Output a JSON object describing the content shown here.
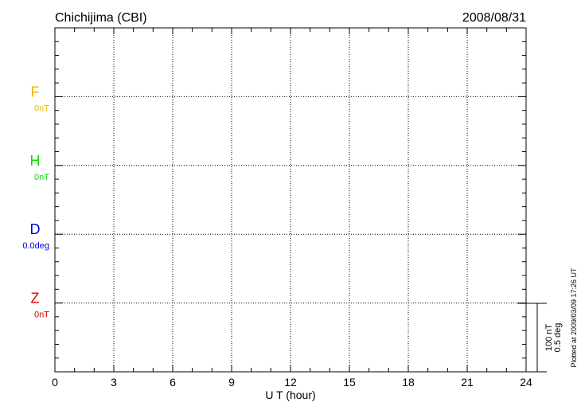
{
  "chart_data": {
    "type": "line",
    "title": "Chichijima (CBI)",
    "date": "2008/08/31",
    "xlabel": "U T (hour)",
    "xlim": [
      0,
      24
    ],
    "xticks": [
      "0",
      "3",
      "6",
      "9",
      "12",
      "15",
      "18",
      "21",
      "24"
    ],
    "grid": true,
    "series": [
      {
        "name": "F",
        "baseline_label": "0nT",
        "color": "#f0b400",
        "values": []
      },
      {
        "name": "H",
        "baseline_label": "0nT",
        "color": "#00e000",
        "values": []
      },
      {
        "name": "D",
        "baseline_label": "0.0deg",
        "color": "#0000e0",
        "values": []
      },
      {
        "name": "Z",
        "baseline_label": "0nT",
        "color": "#e00000",
        "values": []
      }
    ],
    "scale_bar": {
      "line1": "100 nT",
      "line2": "0.5 deg"
    },
    "footer": "Plotted at 2009/03/09 17:26 UT"
  }
}
